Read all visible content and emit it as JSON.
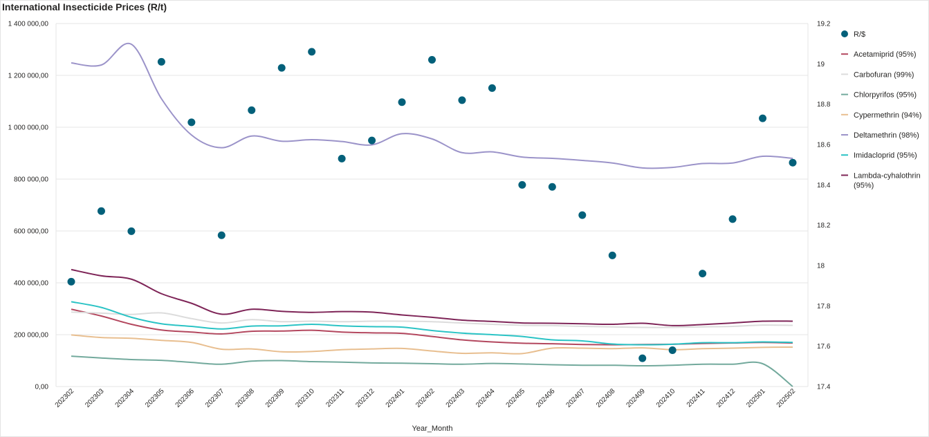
{
  "chart_data": {
    "type": "line",
    "title": "International Insecticide Prices (R/t)",
    "xlabel": "Year_Month",
    "ylabel_left": "",
    "ylabel_right": "",
    "x": [
      "202302",
      "202303",
      "202304",
      "202305",
      "202306",
      "202307",
      "202308",
      "202309",
      "202310",
      "202311",
      "202312",
      "202401",
      "202402",
      "202403",
      "202404",
      "202405",
      "202406",
      "202407",
      "202408",
      "202409",
      "202410",
      "202411",
      "202412",
      "202501",
      "202502"
    ],
    "y_left": {
      "min": 0,
      "max": 1400000,
      "ticks": [
        0,
        200000,
        400000,
        600000,
        800000,
        1000000,
        1200000,
        1400000
      ],
      "tick_labels": [
        "0,00",
        "200 000,00",
        "400 000,00",
        "600 000,00",
        "800 000,00",
        "1 000 000,00",
        "1 200 000,00",
        "1 400 000,00"
      ]
    },
    "y_right": {
      "min": 17.4,
      "max": 19.2,
      "ticks": [
        17.4,
        17.6,
        17.8,
        18,
        18.2,
        18.4,
        18.6,
        18.8,
        19,
        19.2
      ],
      "tick_labels": [
        "17.4",
        "17.6",
        "17.8",
        "18",
        "18.2",
        "18.4",
        "18.6",
        "18.8",
        "19",
        "19.2"
      ]
    },
    "grid": true,
    "legend_position": "right",
    "series": [
      {
        "name": "R/$",
        "kind": "scatter",
        "axis": "right",
        "color": "#03607a",
        "values": [
          17.92,
          18.27,
          18.17,
          19.01,
          18.71,
          18.15,
          18.77,
          18.98,
          19.06,
          18.53,
          18.62,
          18.81,
          19.02,
          18.82,
          18.88,
          18.4,
          18.39,
          18.25,
          18.05,
          17.54,
          17.58,
          17.96,
          18.23,
          18.73,
          18.51
        ]
      },
      {
        "name": "Acetamiprid (95%)",
        "kind": "line",
        "axis": "left",
        "color": "#b3475e",
        "values": [
          298000,
          272000,
          240000,
          218000,
          210000,
          203000,
          213000,
          214000,
          217000,
          210000,
          207000,
          205000,
          193000,
          180000,
          172000,
          167000,
          165000,
          162000,
          161000,
          162000,
          163000,
          166000,
          168000,
          170000,
          168000
        ]
      },
      {
        "name": "Carbofuran (99%)",
        "kind": "line",
        "axis": "left",
        "color": "#dcdcdc",
        "values": [
          287000,
          283000,
          278000,
          284000,
          262000,
          245000,
          258000,
          250000,
          252000,
          250000,
          252000,
          252000,
          250000,
          245000,
          240000,
          236000,
          235000,
          232000,
          230000,
          228000,
          228000,
          230000,
          232000,
          237000,
          236000
        ]
      },
      {
        "name": "Chlorpyrifos (95%)",
        "kind": "line",
        "axis": "left",
        "color": "#72a99c",
        "values": [
          117000,
          110000,
          104000,
          101000,
          93000,
          86000,
          98000,
          100000,
          96000,
          94000,
          91000,
          90000,
          88000,
          86000,
          89000,
          87000,
          84000,
          82000,
          82000,
          80000,
          82000,
          86000,
          86000,
          88000,
          0
        ]
      },
      {
        "name": "Cypermethrin (94%)",
        "kind": "line",
        "axis": "left",
        "color": "#e8be8f",
        "values": [
          199000,
          189000,
          186000,
          178000,
          170000,
          144000,
          145000,
          134000,
          135000,
          142000,
          145000,
          147000,
          137000,
          128000,
          130000,
          127000,
          148000,
          148000,
          146000,
          149000,
          142000,
          146000,
          148000,
          151000,
          152000
        ]
      },
      {
        "name": "Deltamethrin (98%)",
        "kind": "line",
        "axis": "left",
        "color": "#9b93c9",
        "values": [
          1248000,
          1240000,
          1320000,
          1110000,
          970000,
          921000,
          966000,
          946000,
          952000,
          945000,
          932000,
          975000,
          955000,
          902000,
          905000,
          885000,
          880000,
          872000,
          862000,
          843000,
          845000,
          860000,
          862000,
          888000,
          880000
        ]
      },
      {
        "name": "Imidacloprid (95%)",
        "kind": "line",
        "axis": "left",
        "color": "#2ac3c5",
        "values": [
          327000,
          305000,
          267000,
          242000,
          232000,
          222000,
          233000,
          234000,
          240000,
          234000,
          231000,
          229000,
          216000,
          206000,
          200000,
          193000,
          180000,
          176000,
          164000,
          161000,
          163000,
          169000,
          169000,
          172000,
          170000
        ]
      },
      {
        "name": "Lambda-cyhalothrin (95%)",
        "kind": "line",
        "axis": "left",
        "color": "#7e2457",
        "values": [
          451000,
          427000,
          414000,
          358000,
          321000,
          279000,
          298000,
          290000,
          286000,
          289000,
          287000,
          276000,
          267000,
          256000,
          251000,
          245000,
          244000,
          242000,
          240000,
          244000,
          235000,
          239000,
          245000,
          252000,
          252000
        ]
      }
    ]
  }
}
